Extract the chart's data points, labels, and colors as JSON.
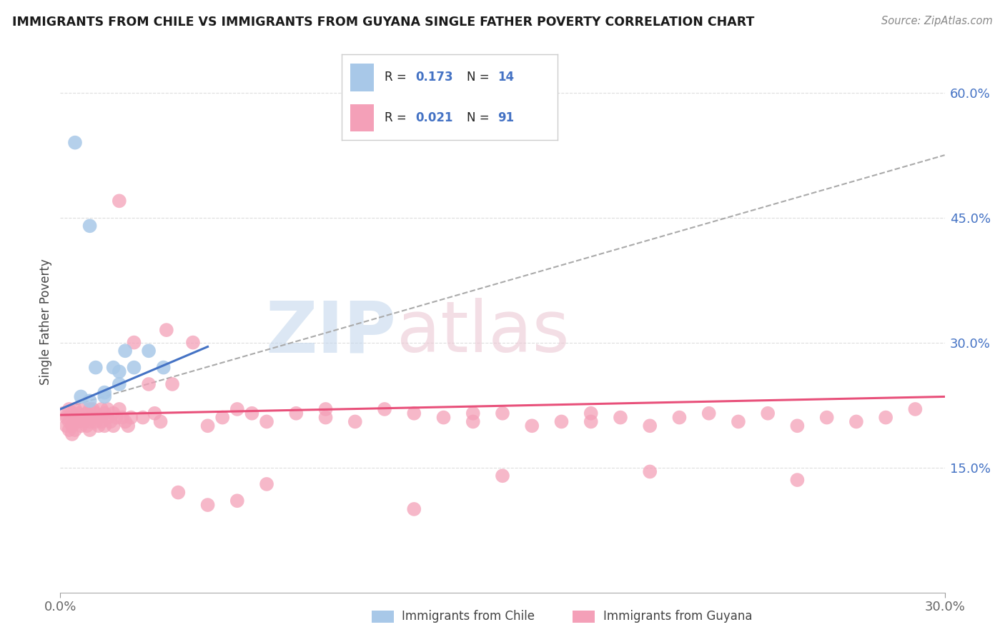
{
  "title": "IMMIGRANTS FROM CHILE VS IMMIGRANTS FROM GUYANA SINGLE FATHER POVERTY CORRELATION CHART",
  "source": "Source: ZipAtlas.com",
  "ylabel": "Single Father Poverty",
  "xlim": [
    0.0,
    0.3
  ],
  "ylim": [
    0.0,
    0.65
  ],
  "yticks": [
    0.15,
    0.3,
    0.45,
    0.6
  ],
  "ytick_labels": [
    "15.0%",
    "30.0%",
    "45.0%",
    "60.0%"
  ],
  "xtick_labels": [
    "0.0%",
    "30.0%"
  ],
  "chile_R": 0.173,
  "chile_N": 14,
  "guyana_R": 0.021,
  "guyana_N": 91,
  "chile_color": "#a8c8e8",
  "chile_line_color": "#4472c4",
  "guyana_color": "#f4a0b8",
  "guyana_line_color": "#e8507a",
  "grid_color": "#dddddd",
  "dashed_line_color": "#aaaaaa",
  "chile_x": [
    0.005,
    0.007,
    0.01,
    0.012,
    0.015,
    0.018,
    0.02,
    0.022,
    0.025,
    0.03,
    0.035,
    0.01,
    0.015,
    0.02
  ],
  "chile_y": [
    0.54,
    0.235,
    0.44,
    0.27,
    0.235,
    0.27,
    0.265,
    0.29,
    0.27,
    0.29,
    0.27,
    0.23,
    0.24,
    0.25
  ],
  "guyana_x": [
    0.001,
    0.002,
    0.002,
    0.003,
    0.003,
    0.003,
    0.004,
    0.004,
    0.004,
    0.005,
    0.005,
    0.005,
    0.006,
    0.006,
    0.007,
    0.007,
    0.008,
    0.008,
    0.009,
    0.009,
    0.01,
    0.01,
    0.01,
    0.011,
    0.011,
    0.012,
    0.012,
    0.013,
    0.013,
    0.014,
    0.014,
    0.015,
    0.015,
    0.016,
    0.016,
    0.017,
    0.018,
    0.018,
    0.019,
    0.02,
    0.02,
    0.021,
    0.022,
    0.023,
    0.024,
    0.025,
    0.028,
    0.03,
    0.032,
    0.034,
    0.036,
    0.038,
    0.04,
    0.045,
    0.05,
    0.055,
    0.06,
    0.065,
    0.07,
    0.08,
    0.09,
    0.1,
    0.11,
    0.12,
    0.13,
    0.14,
    0.15,
    0.16,
    0.17,
    0.18,
    0.19,
    0.2,
    0.21,
    0.22,
    0.23,
    0.24,
    0.25,
    0.26,
    0.27,
    0.28,
    0.29,
    0.18,
    0.14,
    0.09,
    0.12,
    0.06,
    0.05,
    0.07,
    0.15,
    0.2,
    0.25
  ],
  "guyana_y": [
    0.215,
    0.21,
    0.2,
    0.22,
    0.205,
    0.195,
    0.215,
    0.2,
    0.19,
    0.22,
    0.21,
    0.195,
    0.205,
    0.215,
    0.21,
    0.2,
    0.22,
    0.205,
    0.215,
    0.2,
    0.22,
    0.205,
    0.195,
    0.21,
    0.22,
    0.205,
    0.215,
    0.2,
    0.21,
    0.22,
    0.205,
    0.215,
    0.2,
    0.21,
    0.22,
    0.205,
    0.215,
    0.2,
    0.21,
    0.22,
    0.47,
    0.21,
    0.205,
    0.2,
    0.21,
    0.3,
    0.21,
    0.25,
    0.215,
    0.205,
    0.315,
    0.25,
    0.12,
    0.3,
    0.2,
    0.21,
    0.22,
    0.215,
    0.205,
    0.215,
    0.22,
    0.205,
    0.22,
    0.215,
    0.21,
    0.205,
    0.215,
    0.2,
    0.205,
    0.215,
    0.21,
    0.2,
    0.21,
    0.215,
    0.205,
    0.215,
    0.2,
    0.21,
    0.205,
    0.21,
    0.22,
    0.205,
    0.215,
    0.21,
    0.1,
    0.11,
    0.105,
    0.13,
    0.14,
    0.145,
    0.135
  ],
  "chile_line_x0": 0.0,
  "chile_line_y0": 0.22,
  "chile_line_x1": 0.05,
  "chile_line_y1": 0.295,
  "guyana_line_x0": 0.0,
  "guyana_line_y0": 0.213,
  "guyana_line_x1": 0.3,
  "guyana_line_y1": 0.235,
  "dash_line_x0": 0.0,
  "dash_line_y0": 0.22,
  "dash_line_x1": 0.3,
  "dash_line_y1": 0.525
}
